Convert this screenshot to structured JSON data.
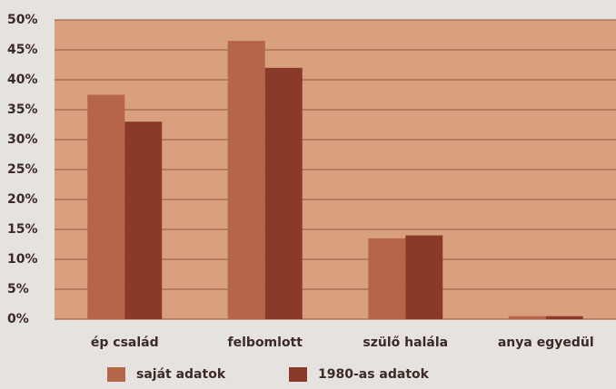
{
  "chart_data": {
    "type": "bar",
    "categories": [
      "ép család",
      "felbomlott",
      "szülő halála",
      "anya egyedül"
    ],
    "series": [
      {
        "name": "saját adatok",
        "color": "#b5654a",
        "values": [
          37.5,
          46.5,
          13.5,
          0.5
        ]
      },
      {
        "name": "1980-as adatok",
        "color": "#8a3a28",
        "values": [
          33,
          42,
          14,
          0.5
        ]
      }
    ],
    "ylim": [
      0,
      50
    ],
    "yticks": [
      {
        "value": 0,
        "label": "0%"
      },
      {
        "value": 5,
        "label": "5%"
      },
      {
        "value": 10,
        "label": "10%"
      },
      {
        "value": 15,
        "label": "15%"
      },
      {
        "value": 20,
        "label": "20%"
      },
      {
        "value": 25,
        "label": "25%"
      },
      {
        "value": 30,
        "label": "30%"
      },
      {
        "value": 35,
        "label": "35%"
      },
      {
        "value": 40,
        "label": "40%"
      },
      {
        "value": 45,
        "label": "45%"
      },
      {
        "value": 50,
        "label": "50%"
      }
    ],
    "grid": true
  }
}
